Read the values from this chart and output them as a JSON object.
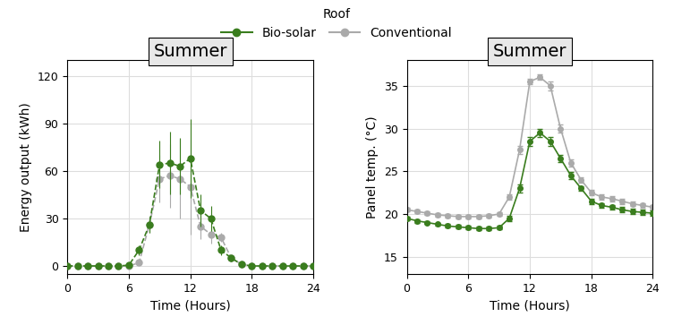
{
  "biosolar_energy_x": [
    0,
    1,
    2,
    3,
    4,
    5,
    6,
    7,
    8,
    9,
    10,
    11,
    12,
    13,
    14,
    15,
    16,
    17,
    18,
    19,
    20,
    21,
    22,
    23,
    24
  ],
  "biosolar_energy_y": [
    0,
    0,
    0,
    0,
    0,
    0,
    0.5,
    10,
    26,
    64,
    65,
    63,
    68,
    35,
    30,
    10,
    5,
    1,
    0,
    0,
    0,
    0,
    0,
    0,
    0
  ],
  "biosolar_energy_err": [
    0,
    0,
    0,
    0,
    0,
    0,
    0.5,
    3,
    5,
    15,
    20,
    18,
    25,
    10,
    8,
    3,
    2,
    0.5,
    0,
    0,
    0,
    0,
    0,
    0,
    0
  ],
  "conventional_energy_x": [
    0,
    1,
    2,
    3,
    4,
    5,
    6,
    7,
    8,
    9,
    10,
    11,
    12,
    13,
    14,
    15,
    16,
    17,
    18,
    19,
    20,
    21,
    22,
    23,
    24
  ],
  "conventional_energy_y": [
    0,
    0,
    0,
    0,
    0,
    0,
    0,
    2,
    26,
    55,
    57,
    55,
    50,
    25,
    20,
    18,
    5,
    1,
    0,
    0,
    0,
    0,
    0,
    0,
    0
  ],
  "conventional_energy_err": [
    0,
    0,
    0,
    0,
    0,
    0,
    0,
    1,
    5,
    15,
    20,
    25,
    30,
    8,
    6,
    3,
    2,
    0.5,
    0,
    0,
    0,
    0,
    0,
    0,
    0
  ],
  "biosolar_temp_x": [
    0,
    1,
    2,
    3,
    4,
    5,
    6,
    7,
    8,
    9,
    10,
    11,
    12,
    13,
    14,
    15,
    16,
    17,
    18,
    19,
    20,
    21,
    22,
    23,
    24
  ],
  "biosolar_temp_y": [
    19.5,
    19.2,
    19.0,
    18.8,
    18.6,
    18.5,
    18.4,
    18.3,
    18.3,
    18.4,
    19.5,
    23,
    28.5,
    29.5,
    28.5,
    26.5,
    24.5,
    23.0,
    21.5,
    21.0,
    20.8,
    20.5,
    20.3,
    20.2,
    20.1
  ],
  "biosolar_temp_err": [
    0.2,
    0.2,
    0.2,
    0.2,
    0.2,
    0.2,
    0.2,
    0.2,
    0.2,
    0.2,
    0.3,
    0.5,
    0.5,
    0.5,
    0.5,
    0.4,
    0.4,
    0.3,
    0.3,
    0.3,
    0.3,
    0.3,
    0.3,
    0.3,
    0.3
  ],
  "conventional_temp_x": [
    0,
    1,
    2,
    3,
    4,
    5,
    6,
    7,
    8,
    9,
    10,
    11,
    12,
    13,
    14,
    15,
    16,
    17,
    18,
    19,
    20,
    21,
    22,
    23,
    24
  ],
  "conventional_temp_y": [
    20.5,
    20.3,
    20.1,
    19.9,
    19.8,
    19.7,
    19.7,
    19.7,
    19.8,
    20.0,
    22.0,
    27.5,
    35.5,
    36.0,
    35.0,
    30.0,
    26.0,
    24.0,
    22.5,
    22.0,
    21.8,
    21.5,
    21.2,
    21.0,
    20.8
  ],
  "conventional_temp_err": [
    0.2,
    0.2,
    0.2,
    0.2,
    0.2,
    0.2,
    0.2,
    0.2,
    0.2,
    0.2,
    0.3,
    0.5,
    0.3,
    0.3,
    0.5,
    0.5,
    0.4,
    0.3,
    0.3,
    0.3,
    0.3,
    0.3,
    0.3,
    0.3,
    0.3
  ],
  "biosolar_color": "#3a7d1e",
  "conventional_color": "#aaaaaa",
  "panel_bg": "#e8e8e8",
  "plot_bg": "#ffffff",
  "grid_color": "#dddddd",
  "title_fontsize": 14,
  "axis_label_fontsize": 10,
  "tick_fontsize": 9,
  "legend_fontsize": 10,
  "energy_ylim": [
    -5,
    130
  ],
  "energy_yticks": [
    0,
    30,
    60,
    90,
    120
  ],
  "temp_ylim": [
    13,
    38
  ],
  "temp_yticks": [
    15,
    20,
    25,
    30,
    35
  ],
  "xlim": [
    0,
    24
  ],
  "xticks": [
    0,
    6,
    12,
    18,
    24
  ],
  "xlabel": "Time (Hours)",
  "ylabel_energy": "Energy output (kWh)",
  "ylabel_temp": "Panel temp. (°C)",
  "panel_title": "Summer",
  "legend_label_biosolar": "Bio-solar",
  "legend_label_conventional": "Conventional",
  "legend_title": "Roof"
}
